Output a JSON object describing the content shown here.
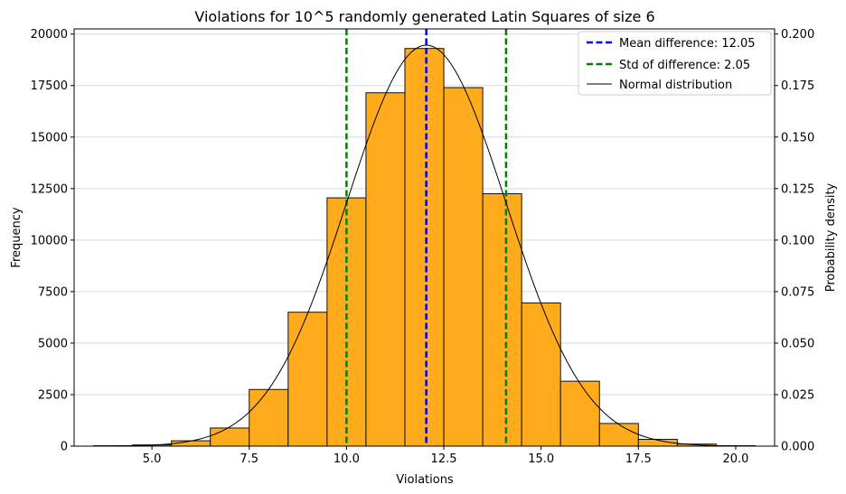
{
  "chart_data": {
    "type": "bar",
    "title": "Violations for 10^5 randomly generated Latin Squares of size 6",
    "xlabel": "Violations",
    "ylabel": "Frequency",
    "y2label": "Probability density",
    "xlim": [
      3,
      21
    ],
    "ylim": [
      0,
      20250
    ],
    "y2lim": [
      0,
      0.2025
    ],
    "xticks": [
      5.0,
      7.5,
      10.0,
      12.5,
      15.0,
      17.5,
      20.0
    ],
    "xtick_labels": [
      "5.0",
      "7.5",
      "10.0",
      "12.5",
      "15.0",
      "17.5",
      "20.0"
    ],
    "yticks": [
      0,
      2500,
      5000,
      7500,
      10000,
      12500,
      15000,
      17500,
      20000
    ],
    "ytick_labels": [
      "0",
      "2500",
      "5000",
      "7500",
      "10000",
      "12500",
      "15000",
      "17500",
      "20000"
    ],
    "y2ticks": [
      0.0,
      0.025,
      0.05,
      0.075,
      0.1,
      0.125,
      0.15,
      0.175,
      0.2
    ],
    "y2tick_labels": [
      "0.000",
      "0.025",
      "0.050",
      "0.075",
      "0.100",
      "0.125",
      "0.150",
      "0.175",
      "0.200"
    ],
    "grid": "horizontal",
    "bins": [
      {
        "left": 3.5,
        "right": 4.5,
        "count": 20
      },
      {
        "left": 4.5,
        "right": 5.5,
        "count": 60
      },
      {
        "left": 5.5,
        "right": 6.5,
        "count": 260
      },
      {
        "left": 6.5,
        "right": 7.5,
        "count": 880
      },
      {
        "left": 7.5,
        "right": 8.5,
        "count": 2750
      },
      {
        "left": 8.5,
        "right": 9.5,
        "count": 6500
      },
      {
        "left": 9.5,
        "right": 10.5,
        "count": 12050
      },
      {
        "left": 10.5,
        "right": 11.5,
        "count": 17150
      },
      {
        "left": 11.5,
        "right": 12.5,
        "count": 19300
      },
      {
        "left": 12.5,
        "right": 13.5,
        "count": 17400
      },
      {
        "left": 13.5,
        "right": 14.5,
        "count": 12250
      },
      {
        "left": 14.5,
        "right": 15.5,
        "count": 6950
      },
      {
        "left": 15.5,
        "right": 16.5,
        "count": 3150
      },
      {
        "left": 16.5,
        "right": 17.5,
        "count": 1100
      },
      {
        "left": 17.5,
        "right": 18.5,
        "count": 330
      },
      {
        "left": 18.5,
        "right": 19.5,
        "count": 100
      },
      {
        "left": 19.5,
        "right": 20.5,
        "count": 20
      }
    ],
    "mean": 12.05,
    "std": 2.05,
    "normal_curve": {
      "mu": 12.05,
      "sigma": 2.05,
      "x_from": 4.0,
      "x_to": 20.0
    },
    "vlines": [
      {
        "x": 12.05,
        "color": "#0000ee",
        "style": "dashed",
        "name": "mean-line"
      },
      {
        "x": 10.0,
        "color": "#008000",
        "style": "dashed",
        "name": "std-line-left"
      },
      {
        "x": 14.1,
        "color": "#008000",
        "style": "dashed",
        "name": "std-line-right"
      }
    ],
    "legend_position": "top-right",
    "legend": [
      {
        "label": "Mean difference: 12.05",
        "color": "#0000ee",
        "style": "dashed"
      },
      {
        "label": "Std of difference: 2.05",
        "color": "#008000",
        "style": "dashed"
      },
      {
        "label": "Normal distribution",
        "color": "#000000",
        "style": "solid"
      }
    ],
    "colors": {
      "bar_fill": "#ffab1c",
      "bar_edge": "#111111",
      "grid": "#d9d9d9",
      "curve": "#000000"
    }
  }
}
